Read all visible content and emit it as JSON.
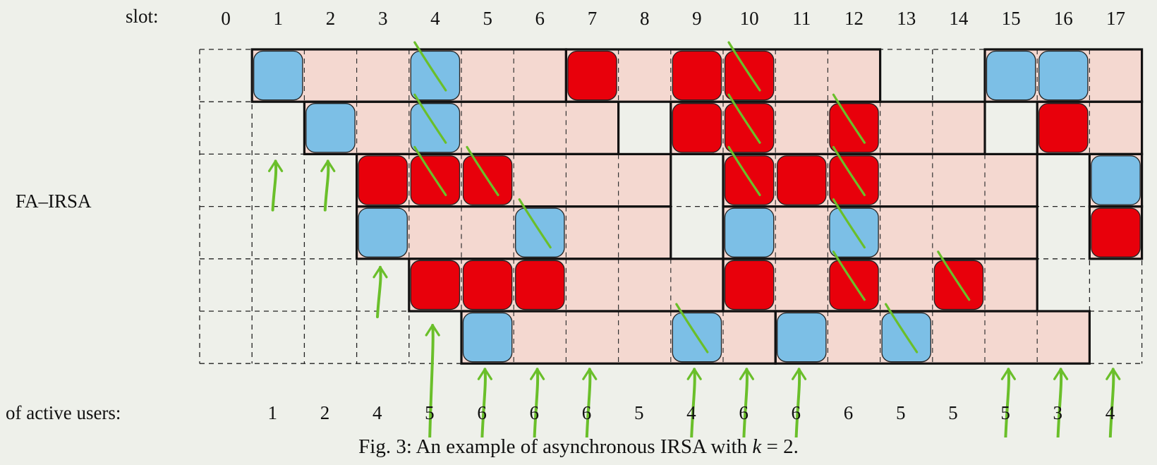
{
  "labels": {
    "slot_label": "slot:",
    "row_label": "FA–IRSA",
    "active_label": "of active users:",
    "caption_prefix": "Fig. 3:  An example of asynchronous IRSA with ",
    "caption_var": "k",
    "caption_suffix": " = 2."
  },
  "slots": [
    "0",
    "1",
    "2",
    "3",
    "4",
    "5",
    "6",
    "7",
    "8",
    "9",
    "10",
    "11",
    "12",
    "13",
    "14",
    "15",
    "16",
    "17"
  ],
  "active_users": [
    {
      "slot": 1,
      "count": "1"
    },
    {
      "slot": 2,
      "count": "2"
    },
    {
      "slot": 3,
      "count": "4"
    },
    {
      "slot": 4,
      "count": "5"
    },
    {
      "slot": 5,
      "count": "6"
    },
    {
      "slot": 6,
      "count": "6"
    },
    {
      "slot": 7,
      "count": "6"
    },
    {
      "slot": 8,
      "count": "5"
    },
    {
      "slot": 9,
      "count": "4"
    },
    {
      "slot": 10,
      "count": "6"
    },
    {
      "slot": 11,
      "count": "6"
    },
    {
      "slot": 12,
      "count": "6"
    },
    {
      "slot": 13,
      "count": "5"
    },
    {
      "slot": 14,
      "count": "5"
    },
    {
      "slot": 15,
      "count": "5"
    },
    {
      "slot": 16,
      "count": "3"
    },
    {
      "slot": 17,
      "count": "4"
    }
  ],
  "colors": {
    "background": "#eef0ea",
    "frame": "#f4d8d0",
    "blue": "#7cbfe6",
    "red": "#e8000b",
    "annotation": "#6abf2a"
  },
  "rows": [
    {
      "frames": [
        [
          1,
          7
        ],
        [
          7,
          13
        ],
        [
          15,
          18
        ]
      ],
      "blocks": [
        {
          "slot": 1,
          "color": "blue"
        },
        {
          "slot": 4,
          "color": "blue"
        },
        {
          "slot": 7,
          "color": "red"
        },
        {
          "slot": 9,
          "color": "red"
        },
        {
          "slot": 10,
          "color": "red"
        },
        {
          "slot": 15,
          "color": "blue"
        },
        {
          "slot": 16,
          "color": "blue"
        }
      ]
    },
    {
      "frames": [
        [
          2,
          8
        ],
        [
          9,
          15
        ],
        [
          16,
          18
        ]
      ],
      "blocks": [
        {
          "slot": 2,
          "color": "blue"
        },
        {
          "slot": 4,
          "color": "blue"
        },
        {
          "slot": 9,
          "color": "red"
        },
        {
          "slot": 10,
          "color": "red"
        },
        {
          "slot": 12,
          "color": "red"
        },
        {
          "slot": 16,
          "color": "red"
        }
      ]
    },
    {
      "frames": [
        [
          3,
          9
        ],
        [
          10,
          16
        ],
        [
          17,
          18
        ]
      ],
      "blocks": [
        {
          "slot": 3,
          "color": "red"
        },
        {
          "slot": 4,
          "color": "red"
        },
        {
          "slot": 5,
          "color": "red"
        },
        {
          "slot": 10,
          "color": "red"
        },
        {
          "slot": 11,
          "color": "red"
        },
        {
          "slot": 12,
          "color": "red"
        },
        {
          "slot": 17,
          "color": "blue"
        }
      ]
    },
    {
      "frames": [
        [
          3,
          9
        ],
        [
          10,
          16
        ],
        [
          17,
          18
        ]
      ],
      "blocks": [
        {
          "slot": 3,
          "color": "blue"
        },
        {
          "slot": 6,
          "color": "blue"
        },
        {
          "slot": 10,
          "color": "blue"
        },
        {
          "slot": 12,
          "color": "blue"
        },
        {
          "slot": 17,
          "color": "red"
        }
      ]
    },
    {
      "frames": [
        [
          4,
          10
        ],
        [
          10,
          16
        ]
      ],
      "blocks": [
        {
          "slot": 4,
          "color": "red"
        },
        {
          "slot": 5,
          "color": "red"
        },
        {
          "slot": 6,
          "color": "red"
        },
        {
          "slot": 10,
          "color": "red"
        },
        {
          "slot": 12,
          "color": "red"
        },
        {
          "slot": 14,
          "color": "red"
        }
      ]
    },
    {
      "frames": [
        [
          5,
          11
        ],
        [
          11,
          17
        ]
      ],
      "blocks": [
        {
          "slot": 5,
          "color": "blue"
        },
        {
          "slot": 9,
          "color": "blue"
        },
        {
          "slot": 11,
          "color": "blue"
        },
        {
          "slot": 13,
          "color": "blue"
        }
      ]
    }
  ],
  "strikes": [
    {
      "row": 0,
      "slot": 4
    },
    {
      "row": 0,
      "slot": 10
    },
    {
      "row": 1,
      "slot": 4
    },
    {
      "row": 1,
      "slot": 10
    },
    {
      "row": 1,
      "slot": 12
    },
    {
      "row": 2,
      "slot": 4
    },
    {
      "row": 2,
      "slot": 5
    },
    {
      "row": 2,
      "slot": 10
    },
    {
      "row": 2,
      "slot": 12
    },
    {
      "row": 3,
      "slot": 6
    },
    {
      "row": 3,
      "slot": 12
    },
    {
      "row": 4,
      "slot": 12
    },
    {
      "row": 4,
      "slot": 14
    },
    {
      "row": 5,
      "slot": 9
    },
    {
      "row": 5,
      "slot": 13
    }
  ],
  "arrow_slots": [
    1,
    2,
    3,
    4,
    5,
    6,
    7,
    9,
    10,
    11,
    15,
    16,
    17
  ]
}
